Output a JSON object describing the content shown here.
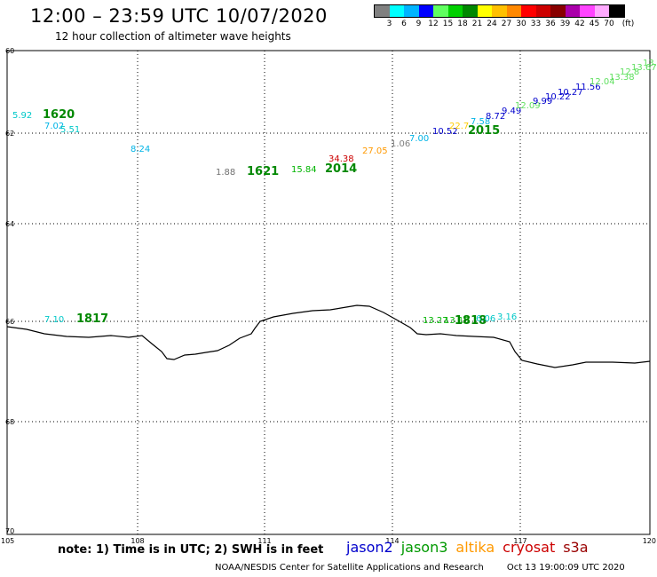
{
  "header": {
    "title": "12:00 – 23:59 UTC 10/07/2020",
    "subtitle": "12 hour collection of altimeter wave heights"
  },
  "color_scale": {
    "unit": "(ft)",
    "colors": [
      "#808080",
      "#00ffff",
      "#00b4ff",
      "#0000ff",
      "#60ff60",
      "#00d000",
      "#008800",
      "#ffff00",
      "#ffc000",
      "#ff8800",
      "#ff0000",
      "#cc0000",
      "#880000",
      "#aa00aa",
      "#ff44ff",
      "#ffaaff",
      "#000000"
    ],
    "labels": [
      "3",
      "6",
      "9",
      "12",
      "15",
      "18",
      "21",
      "24",
      "27",
      "30",
      "33",
      "36",
      "39",
      "42",
      "45",
      "70"
    ]
  },
  "axes": {
    "y_ticks": [
      "60",
      "62",
      "64",
      "66",
      "68",
      "70"
    ],
    "x_ticks": [
      "105",
      "108",
      "111",
      "114",
      "117",
      "120"
    ]
  },
  "observations": [
    {
      "text": "5.92",
      "color": "#00c8c8"
    },
    {
      "text": "1620",
      "color": "#008800",
      "bold": true
    },
    {
      "text": "7.02",
      "color": "#00b4e6"
    },
    {
      "text": "5.51",
      "color": "#00c8c8"
    },
    {
      "text": "8.24",
      "color": "#00b4e6"
    },
    {
      "text": "1.88",
      "color": "#707070"
    },
    {
      "text": "1621",
      "color": "#008800",
      "bold": true
    },
    {
      "text": "15.84",
      "color": "#00b400"
    },
    {
      "text": "34.38",
      "color": "#cc0000"
    },
    {
      "text": "2014",
      "color": "#008800",
      "bold": true
    },
    {
      "text": "27.05",
      "color": "#ff9900"
    },
    {
      "text": "1.06",
      "color": "#808080"
    },
    {
      "text": "7.00",
      "color": "#00b4e6"
    },
    {
      "text": "10.52",
      "color": "#0000cc"
    },
    {
      "text": "22.7",
      "color": "#ffcc00"
    },
    {
      "text": "7.58",
      "color": "#00b4e6"
    },
    {
      "text": "2015",
      "color": "#008800",
      "bold": true
    },
    {
      "text": "8.72",
      "color": "#0000cc"
    },
    {
      "text": "9.49",
      "color": "#0000cc"
    },
    {
      "text": "12.09",
      "color": "#60e060"
    },
    {
      "text": "9.99",
      "color": "#0000cc"
    },
    {
      "text": "10.22",
      "color": "#0000cc"
    },
    {
      "text": "10.27",
      "color": "#0000cc"
    },
    {
      "text": "11.56",
      "color": "#0000cc"
    },
    {
      "text": "12.04",
      "color": "#60e060"
    },
    {
      "text": "13.38",
      "color": "#60e060"
    },
    {
      "text": "12.8",
      "color": "#60e060"
    },
    {
      "text": "13.67",
      "color": "#60e060"
    },
    {
      "text": "13.9",
      "color": "#60e060"
    },
    {
      "text": "7.10",
      "color": "#00c8c8"
    },
    {
      "text": "1817",
      "color": "#008800",
      "bold": true
    },
    {
      "text": "13.27",
      "color": "#00b400"
    },
    {
      "text": "13.19",
      "color": "#00b400"
    },
    {
      "text": "1818",
      "color": "#008800",
      "bold": true
    },
    {
      "text": "6.06",
      "color": "#00c8c8"
    },
    {
      "text": "3.16",
      "color": "#00c8c8"
    }
  ],
  "footer": {
    "note": "note:  1) Time is in UTC;  2) SWH is in feet",
    "satellites": [
      {
        "name": "jason2",
        "color": "#0000cc"
      },
      {
        "name": "jason3",
        "color": "#009900"
      },
      {
        "name": "altika",
        "color": "#ff9900"
      },
      {
        "name": "cryosat",
        "color": "#cc0000"
      },
      {
        "name": "s3a",
        "color": "#990000"
      }
    ],
    "credit": "NOAA/NESDIS Center for Satellite Applications and Research",
    "timestamp": "Oct 13 19:00:09 UTC 2020"
  }
}
